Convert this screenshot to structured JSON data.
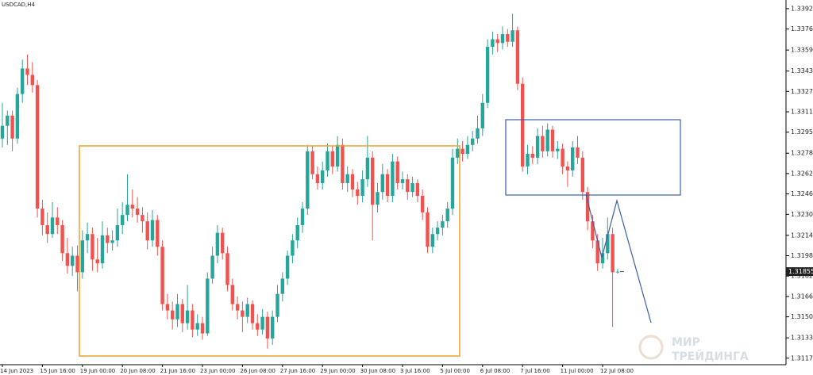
{
  "chart_data": {
    "type": "candlestick",
    "title": "USDCAD,H4",
    "categories": [
      "14 Jun 2023",
      null,
      null,
      null,
      null,
      null,
      null,
      null,
      "15 Jun 16:00",
      null,
      null,
      null,
      null,
      null,
      null,
      null,
      "19 Jun 00:00",
      null,
      null,
      null,
      null,
      null,
      null,
      null,
      "20 Jun 08:00",
      null,
      null,
      null,
      null,
      null,
      null,
      null,
      "21 Jun 16:00",
      null,
      null,
      null,
      null,
      null,
      null,
      null,
      "23 Jun 00:00",
      null,
      null,
      null,
      null,
      null,
      null,
      null,
      "26 Jun 08:00",
      null,
      null,
      null,
      null,
      null,
      null,
      null,
      "27 Jun 16:00",
      null,
      null,
      null,
      null,
      null,
      null,
      null,
      "29 Jun 00:00",
      null,
      null,
      null,
      null,
      null,
      null,
      null,
      "30 Jun 08:00",
      null,
      null,
      null,
      null,
      null,
      null,
      null,
      "3 Jul 16:00",
      null,
      null,
      null,
      null,
      null,
      null,
      null,
      "5 Jul 00:00",
      null,
      null,
      null,
      null,
      null,
      null,
      null,
      "6 Jul 08:00",
      null,
      null,
      null,
      null,
      null,
      null,
      null,
      "7 Jul 16:00",
      null,
      null,
      null,
      null,
      null,
      null,
      null,
      "11 Jul 00:00",
      null,
      null,
      null,
      null,
      null,
      null,
      null,
      "12 Jul 08:00",
      null,
      null,
      null
    ],
    "open": [
      1.329,
      1.33,
      1.3308,
      1.329,
      1.3325,
      1.3345,
      1.334,
      1.3332,
      1.3235,
      1.3222,
      1.3215,
      1.3228,
      1.3222,
      1.32,
      1.319,
      1.3198,
      1.3185,
      1.321,
      1.3215,
      1.3195,
      1.3192,
      1.3214,
      1.3208,
      1.321,
      1.3222,
      1.323,
      1.3238,
      1.3235,
      1.323,
      1.3225,
      1.321,
      1.3226,
      1.3205,
      1.316,
      1.3155,
      1.3148,
      1.316,
      1.3145,
      1.3155,
      1.314,
      1.3145,
      1.3137,
      1.318,
      1.3198,
      1.3216,
      1.32,
      1.3175,
      1.316,
      1.3155,
      1.315,
      1.316,
      1.3145,
      1.314,
      1.315,
      1.3133,
      1.315,
      1.3168,
      1.318,
      1.3198,
      1.321,
      1.3222,
      1.3235,
      1.328,
      1.3262,
      1.3255,
      1.3265,
      1.328,
      1.3268,
      1.3285,
      1.3255,
      1.3262,
      1.325,
      1.3245,
      1.3258,
      1.3275,
      1.3238,
      1.3248,
      1.3262,
      1.3245,
      1.3272,
      1.3255,
      1.3258,
      1.3248,
      1.3255,
      1.3245,
      1.3232,
      1.3205,
      1.3215,
      1.322,
      1.3225,
      1.3235,
      1.3275,
      1.3282,
      1.3278,
      1.3285,
      1.329,
      1.3298,
      1.3318,
      1.3362,
      1.3368,
      1.3365,
      1.3372,
      1.3366,
      1.3375,
      1.3333,
      1.3268,
      1.3278,
      1.3275,
      1.3292,
      1.328,
      1.3297,
      1.328,
      1.3282,
      1.3268,
      1.3265,
      1.3283,
      1.3275,
      1.3248,
      1.3225,
      1.321,
      1.3192,
      1.32,
      1.3215,
      1.3185
    ],
    "high": [
      1.3318,
      1.3312,
      1.3312,
      1.333,
      1.3352,
      1.3356,
      1.335,
      1.3336,
      1.3242,
      1.3232,
      1.324,
      1.3236,
      1.3226,
      1.3212,
      1.3205,
      1.3206,
      1.3218,
      1.3224,
      1.322,
      1.3212,
      1.3225,
      1.322,
      1.3218,
      1.3235,
      1.324,
      1.3262,
      1.325,
      1.3244,
      1.3236,
      1.3232,
      1.3234,
      1.323,
      1.321,
      1.3168,
      1.3162,
      1.3168,
      1.3164,
      1.3175,
      1.316,
      1.3152,
      1.315,
      1.3185,
      1.3205,
      1.3222,
      1.322,
      1.3205,
      1.318,
      1.3166,
      1.3162,
      1.3165,
      1.3163,
      1.3152,
      1.3156,
      1.3154,
      1.3155,
      1.3175,
      1.3185,
      1.3202,
      1.3215,
      1.3228,
      1.324,
      1.3285,
      1.3284,
      1.3268,
      1.3272,
      1.3286,
      1.3284,
      1.3292,
      1.329,
      1.3268,
      1.3266,
      1.3256,
      1.3265,
      1.3292,
      1.328,
      1.3255,
      1.327,
      1.3266,
      1.3278,
      1.3276,
      1.3264,
      1.3262,
      1.326,
      1.3258,
      1.325,
      1.3236,
      1.322,
      1.3225,
      1.323,
      1.324,
      1.3282,
      1.329,
      1.3288,
      1.3292,
      1.3296,
      1.3308,
      1.3325,
      1.3368,
      1.3374,
      1.3372,
      1.3378,
      1.3376,
      1.3388,
      1.3378,
      1.3338,
      1.3285,
      1.3284,
      1.3298,
      1.33,
      1.3302,
      1.33,
      1.3288,
      1.3286,
      1.3272,
      1.3288,
      1.3292,
      1.328,
      1.3252,
      1.323,
      1.3215,
      1.3212,
      1.3228,
      1.322,
      1.31875
    ],
    "low": [
      1.3283,
      1.3285,
      1.328,
      1.3286,
      1.3318,
      1.3332,
      1.3326,
      1.3228,
      1.3214,
      1.3208,
      1.3212,
      1.3215,
      1.3194,
      1.3184,
      1.3182,
      1.317,
      1.318,
      1.32,
      1.3186,
      1.3185,
      1.3188,
      1.32,
      1.3202,
      1.3205,
      1.3215,
      1.3225,
      1.3228,
      1.3224,
      1.3216,
      1.3203,
      1.3205,
      1.3198,
      1.3155,
      1.3148,
      1.314,
      1.3142,
      1.3138,
      1.314,
      1.3134,
      1.3135,
      1.3132,
      1.3135,
      1.3176,
      1.3192,
      1.3195,
      1.317,
      1.3155,
      1.3148,
      1.3138,
      1.3145,
      1.314,
      1.3135,
      1.3136,
      1.3125,
      1.3128,
      1.3146,
      1.3162,
      1.3175,
      1.3192,
      1.3204,
      1.3216,
      1.323,
      1.3258,
      1.325,
      1.325,
      1.326,
      1.3262,
      1.3264,
      1.325,
      1.3248,
      1.3244,
      1.3238,
      1.324,
      1.3252,
      1.321,
      1.3232,
      1.3242,
      1.324,
      1.324,
      1.325,
      1.325,
      1.3242,
      1.3244,
      1.324,
      1.3226,
      1.32,
      1.32,
      1.321,
      1.3214,
      1.322,
      1.323,
      1.327,
      1.3272,
      1.3274,
      1.328,
      1.3286,
      1.3292,
      1.3314,
      1.3356,
      1.3358,
      1.336,
      1.3362,
      1.3362,
      1.3328,
      1.3264,
      1.3262,
      1.327,
      1.327,
      1.3275,
      1.3276,
      1.3275,
      1.3274,
      1.3262,
      1.3252,
      1.326,
      1.327,
      1.3242,
      1.3218,
      1.3204,
      1.3186,
      1.3188,
      1.3195,
      1.3142,
      1.3184
    ],
    "close": [
      1.33,
      1.3308,
      1.329,
      1.3325,
      1.3345,
      1.334,
      1.3332,
      1.3235,
      1.3222,
      1.3215,
      1.3228,
      1.3222,
      1.32,
      1.319,
      1.3198,
      1.3185,
      1.321,
      1.3215,
      1.3195,
      1.3192,
      1.3214,
      1.3208,
      1.321,
      1.3222,
      1.323,
      1.3238,
      1.3235,
      1.323,
      1.3225,
      1.321,
      1.3226,
      1.3205,
      1.316,
      1.3155,
      1.3148,
      1.316,
      1.3145,
      1.3155,
      1.314,
      1.3145,
      1.3137,
      1.318,
      1.3198,
      1.3216,
      1.32,
      1.3175,
      1.316,
      1.3155,
      1.315,
      1.316,
      1.3145,
      1.314,
      1.315,
      1.3133,
      1.315,
      1.3168,
      1.318,
      1.3198,
      1.321,
      1.3222,
      1.3235,
      1.328,
      1.3262,
      1.3255,
      1.3265,
      1.328,
      1.3268,
      1.3285,
      1.3255,
      1.3262,
      1.325,
      1.3245,
      1.3258,
      1.3275,
      1.3238,
      1.3248,
      1.3262,
      1.3245,
      1.3272,
      1.3255,
      1.3258,
      1.3248,
      1.3255,
      1.3245,
      1.3232,
      1.3205,
      1.3215,
      1.322,
      1.3225,
      1.3235,
      1.3275,
      1.3282,
      1.3278,
      1.3285,
      1.329,
      1.3298,
      1.3318,
      1.3362,
      1.3368,
      1.3365,
      1.3372,
      1.3366,
      1.3375,
      1.3333,
      1.3268,
      1.3278,
      1.3275,
      1.3292,
      1.328,
      1.3297,
      1.328,
      1.3282,
      1.3268,
      1.3265,
      1.3283,
      1.3275,
      1.3248,
      1.3225,
      1.321,
      1.3192,
      1.32,
      1.3215,
      1.3185,
      1.31855
    ],
    "up_color": "#26a69a",
    "down_color": "#ef5350",
    "last_price": {
      "value": 1.31855,
      "label": "1.31855"
    },
    "ylim": [
      1.31124,
      1.33988
    ],
    "yticks": [
      {
        "value": 1.3392,
        "label": "1.33920"
      },
      {
        "value": 1.3376,
        "label": "1.33760"
      },
      {
        "value": 1.33595,
        "label": "1.33595"
      },
      {
        "value": 1.3343,
        "label": "1.33430"
      },
      {
        "value": 1.3327,
        "label": "1.33270"
      },
      {
        "value": 1.3311,
        "label": "1.33110"
      },
      {
        "value": 1.3295,
        "label": "1.32950"
      },
      {
        "value": 1.32785,
        "label": "1.32785"
      },
      {
        "value": 1.32625,
        "label": "1.32625"
      },
      {
        "value": 1.32465,
        "label": "1.32465"
      },
      {
        "value": 1.32305,
        "label": "1.32305"
      },
      {
        "value": 1.3214,
        "label": "1.32140"
      },
      {
        "value": 1.3198,
        "label": "1.31980"
      },
      {
        "value": 1.3182,
        "label": "1.31820"
      },
      {
        "value": 1.3166,
        "label": "1.31660"
      },
      {
        "value": 1.315,
        "label": "1.31500"
      },
      {
        "value": 1.31335,
        "label": "1.31335"
      },
      {
        "value": 1.31175,
        "label": "1.31175"
      }
    ],
    "watermark": {
      "line1": "МИР",
      "line2": "ТРЕЙДИНГА"
    }
  }
}
